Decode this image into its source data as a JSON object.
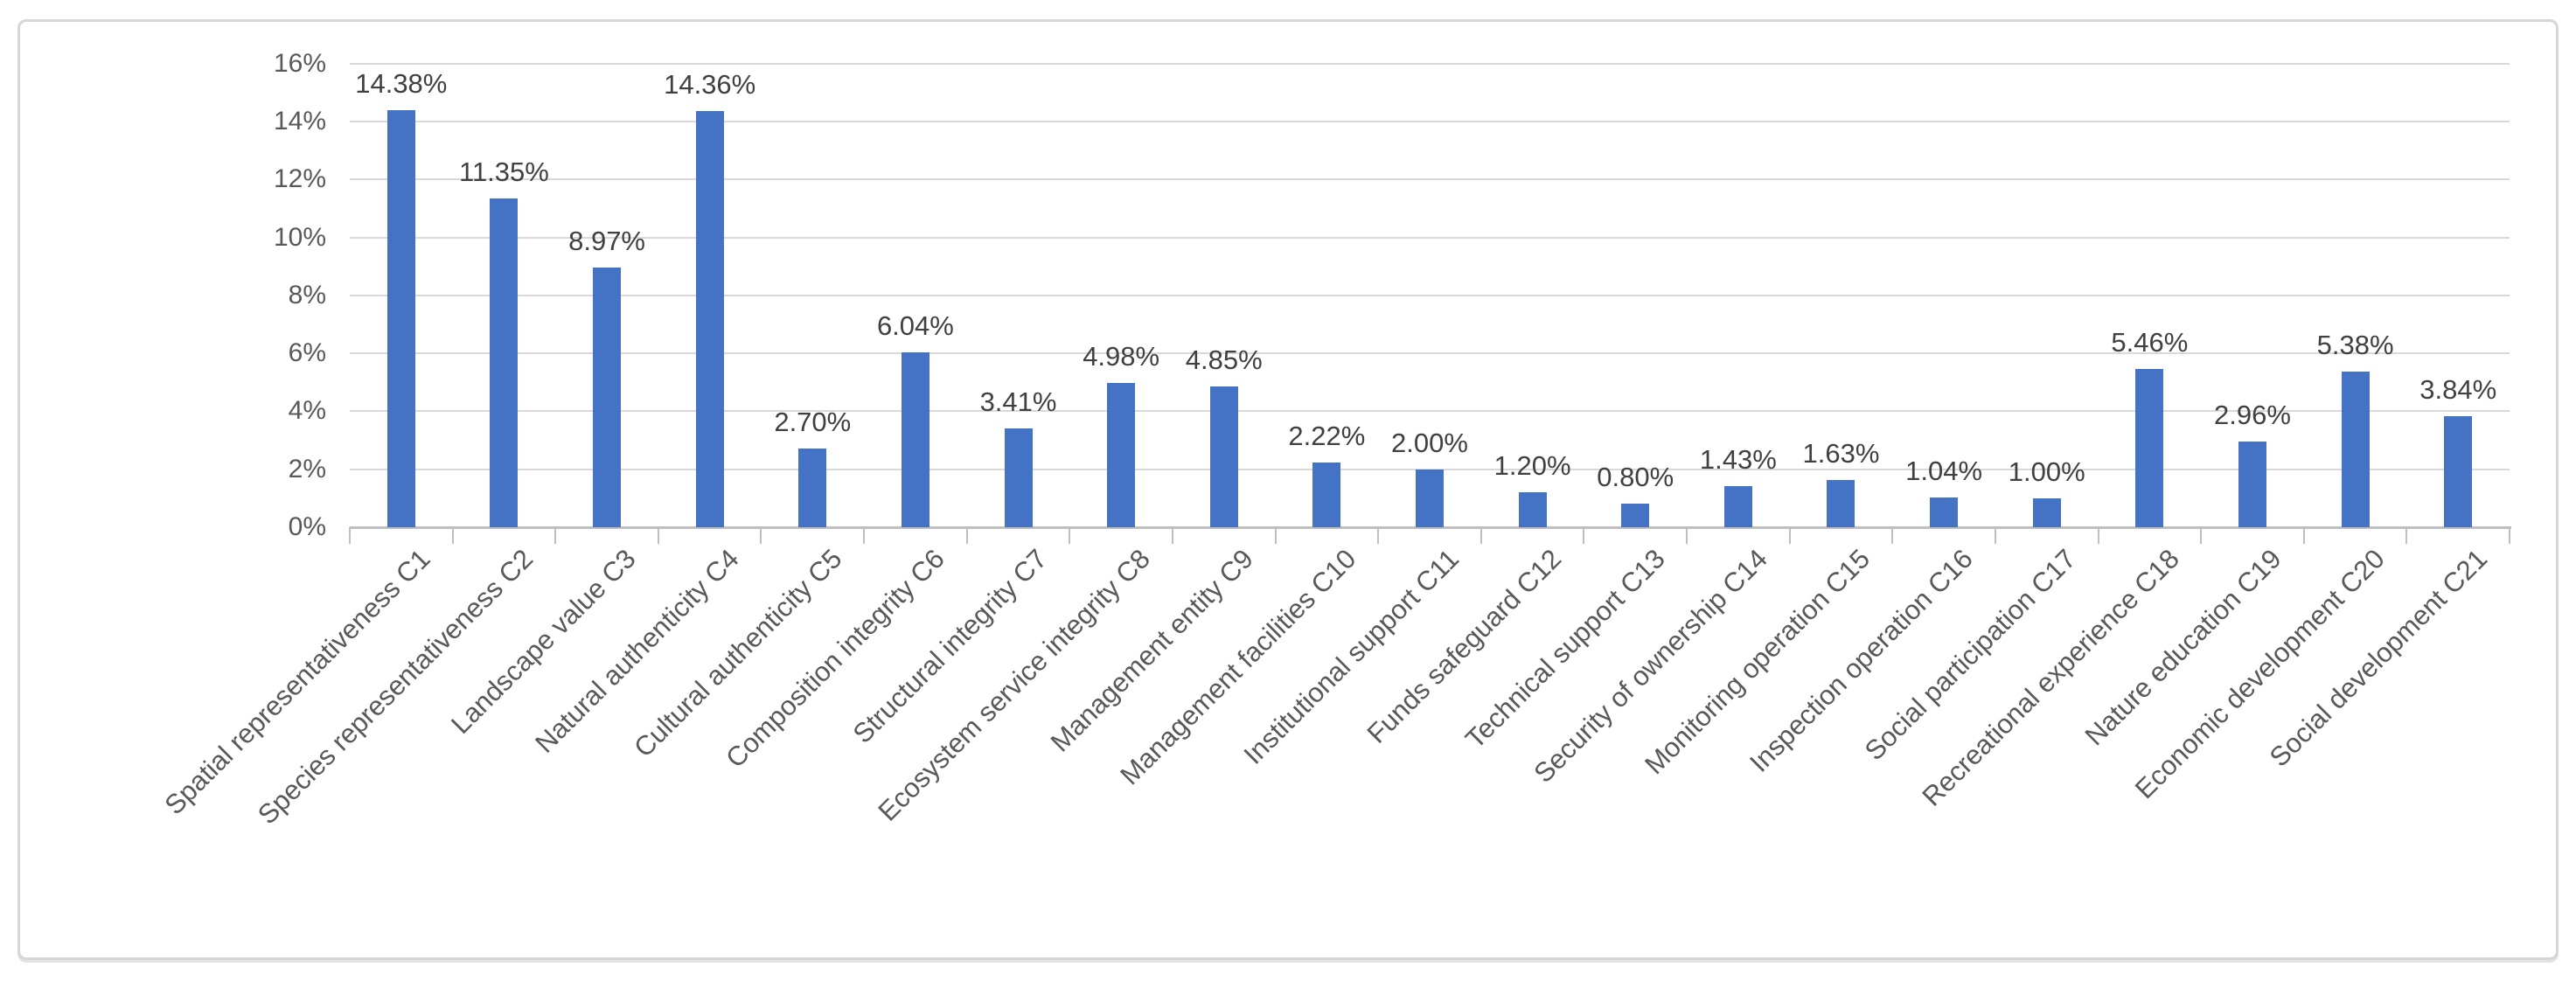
{
  "chart_data": {
    "type": "bar",
    "title": "",
    "xlabel": "",
    "ylabel": "",
    "categories": [
      "Spatial representativeness C1",
      "Species representativeness C2",
      "Landscape value C3",
      "Natural authenticity C4",
      "Cultural authenticity C5",
      "Composition integrity C6",
      "Structural integrity C7",
      "Ecosystem service integrity C8",
      "Management entity C9",
      "Management facilities C10",
      "Institutional support C11",
      "Funds safeguard C12",
      "Technical support C13",
      "Security of ownership C14",
      "Monitoring operation C15",
      "Inspection operation C16",
      "Social participation C17",
      "Recreational experience C18",
      "Nature education C19",
      "Economic development C20",
      "Social development C21"
    ],
    "values": [
      14.38,
      11.35,
      8.97,
      14.36,
      2.7,
      6.04,
      3.41,
      4.98,
      4.85,
      2.22,
      2.0,
      1.2,
      0.8,
      1.43,
      1.63,
      1.04,
      1.0,
      5.46,
      2.96,
      5.38,
      3.84
    ],
    "data_labels": [
      "14.38%",
      "11.35%",
      "8.97%",
      "14.36%",
      "2.70%",
      "6.04%",
      "3.41%",
      "4.98%",
      "4.85%",
      "2.22%",
      "2.00%",
      "1.20%",
      "0.80%",
      "1.43%",
      "1.63%",
      "1.04%",
      "1.00%",
      "5.46%",
      "2.96%",
      "5.38%",
      "3.84%"
    ],
    "y_tick_labels": [
      "0%",
      "2%",
      "4%",
      "6%",
      "8%",
      "10%",
      "12%",
      "14%",
      "16%"
    ],
    "y_tick_values": [
      0,
      2,
      4,
      6,
      8,
      10,
      12,
      14,
      16
    ],
    "ylim": [
      0,
      16
    ],
    "grid": true,
    "legend": "none",
    "bar_color": "#4472c4",
    "gridline_color": "#d9d9d9",
    "axis_color": "#bfbfbf",
    "axis_text_color": "#595959",
    "data_label_color": "#404040",
    "category_label_rotation_deg": 45
  }
}
